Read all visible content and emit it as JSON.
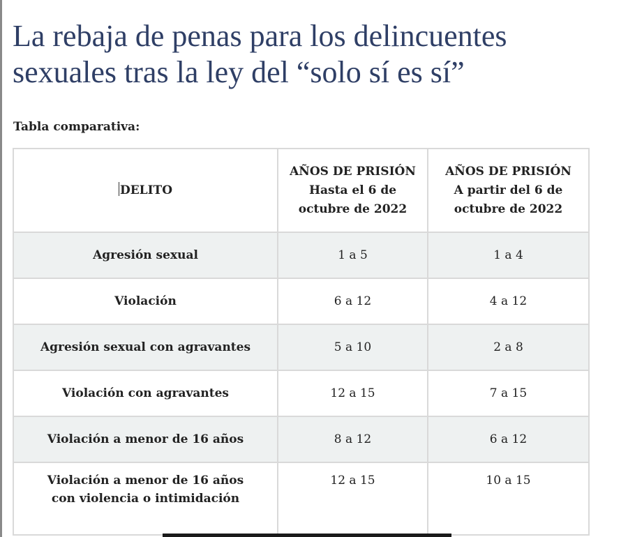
{
  "headline": {
    "line1": "La rebaja de penas para los delincuentes",
    "line2": "sexuales tras la ley del “solo sí es sí”"
  },
  "caption": "Tabla comparativa:",
  "table": {
    "headers": {
      "delito": "DELITO",
      "before": {
        "line1": "AÑOS DE PRISIÓN",
        "line2": "Hasta el 6 de",
        "line3": "octubre de 2022"
      },
      "after": {
        "line1": "AÑOS DE PRISIÓN",
        "line2": "A partir del 6 de",
        "line3": "octubre de 2022"
      }
    },
    "rows": [
      {
        "delito": "Agresión sexual",
        "before": "1 a 5",
        "after": "1 a 4"
      },
      {
        "delito": "Violación",
        "before": "6 a 12",
        "after": "4 a 12"
      },
      {
        "delito": "Agresión sexual con agravantes",
        "before": "5 a 10",
        "after": "2 a 8"
      },
      {
        "delito": "Violación con agravantes",
        "before": "12 a 15",
        "after": "7 a 15"
      },
      {
        "delito": "Violación a menor de 16 años",
        "before": "8 a 12",
        "after": "6 a 12"
      },
      {
        "delito_line1": "Violación a menor de 16 años",
        "delito_line2": "con violencia o intimidación",
        "before": "12 a 15",
        "after": "10 a 15"
      }
    ]
  },
  "colors": {
    "headline": "#2f3f66",
    "border": "#d9d9d9",
    "shaded_row": "#eef1f1"
  }
}
